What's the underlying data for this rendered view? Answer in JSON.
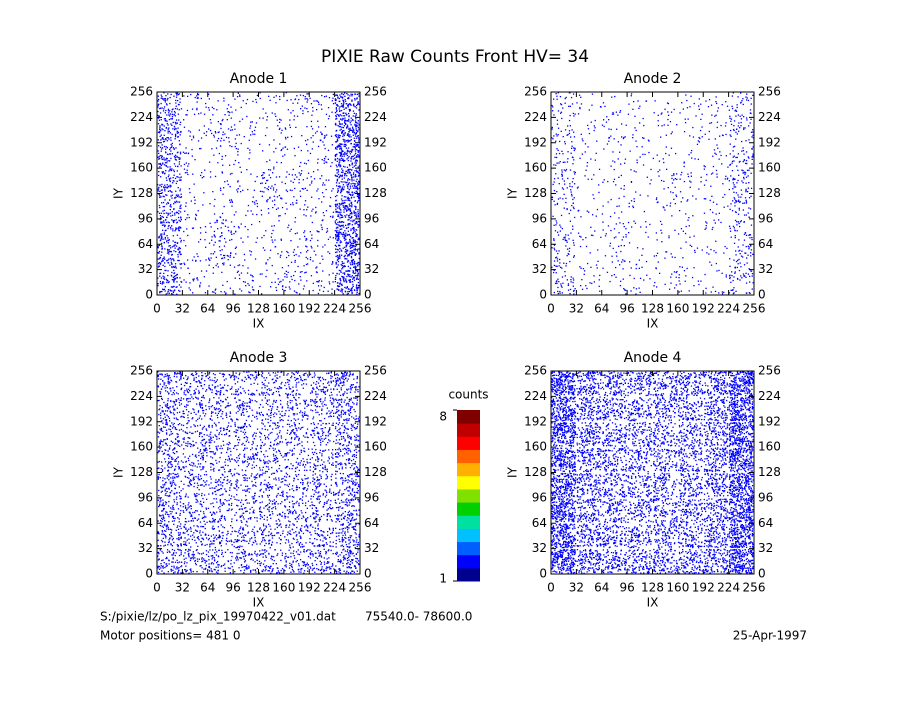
{
  "title": "PIXIE Raw Counts Front HV= 34",
  "chart_data": [
    {
      "type": "dot-density",
      "title": "Anode 1",
      "xlabel": "IX",
      "ylabel": "IY",
      "color": "#0000ff",
      "xlim": [
        0,
        256
      ],
      "ylim": [
        0,
        256
      ],
      "xticks": [
        0,
        32,
        64,
        96,
        128,
        160,
        192,
        224,
        256
      ],
      "yticks": [
        0,
        32,
        64,
        96,
        128,
        160,
        192,
        224,
        256
      ],
      "density": [
        [
          90,
          20,
          15,
          25,
          20,
          30,
          25,
          140
        ],
        [
          100,
          15,
          35,
          15,
          15,
          25,
          20,
          150
        ],
        [
          90,
          15,
          40,
          15,
          15,
          15,
          20,
          160
        ],
        [
          80,
          15,
          15,
          15,
          25,
          20,
          20,
          150
        ],
        [
          80,
          15,
          15,
          15,
          35,
          30,
          20,
          150
        ],
        [
          90,
          15,
          15,
          15,
          15,
          15,
          20,
          160
        ],
        [
          90,
          15,
          35,
          20,
          15,
          15,
          25,
          150
        ],
        [
          80,
          25,
          20,
          15,
          15,
          30,
          25,
          130
        ]
      ]
    },
    {
      "type": "dot-density",
      "title": "Anode 2",
      "xlabel": "IX",
      "ylabel": "IY",
      "color": "#0000ff",
      "xlim": [
        0,
        256
      ],
      "ylim": [
        0,
        256
      ],
      "xticks": [
        0,
        32,
        64,
        96,
        128,
        160,
        192,
        224,
        256
      ],
      "yticks": [
        0,
        32,
        64,
        96,
        128,
        160,
        192,
        224,
        256
      ],
      "density": [
        [
          40,
          15,
          12,
          12,
          15,
          15,
          15,
          45
        ],
        [
          35,
          12,
          20,
          12,
          12,
          12,
          12,
          40
        ],
        [
          30,
          10,
          20,
          12,
          10,
          10,
          12,
          35
        ],
        [
          30,
          10,
          12,
          10,
          15,
          10,
          15,
          40
        ],
        [
          35,
          10,
          12,
          10,
          20,
          15,
          15,
          45
        ],
        [
          30,
          10,
          12,
          10,
          10,
          10,
          15,
          40
        ],
        [
          30,
          12,
          20,
          12,
          12,
          15,
          15,
          40
        ],
        [
          30,
          12,
          12,
          12,
          12,
          15,
          15,
          35
        ]
      ]
    },
    {
      "type": "dot-density",
      "title": "Anode 3",
      "xlabel": "IX",
      "ylabel": "IY",
      "color": "#0000ff",
      "xlim": [
        0,
        256
      ],
      "ylim": [
        0,
        256
      ],
      "xticks": [
        0,
        32,
        64,
        96,
        128,
        160,
        192,
        224,
        256
      ],
      "yticks": [
        0,
        32,
        64,
        96,
        128,
        160,
        192,
        224,
        256
      ],
      "density": [
        [
          90,
          75,
          70,
          70,
          70,
          70,
          75,
          100
        ],
        [
          85,
          70,
          65,
          65,
          65,
          65,
          70,
          95
        ],
        [
          80,
          65,
          65,
          60,
          60,
          65,
          65,
          90
        ],
        [
          80,
          65,
          60,
          60,
          65,
          60,
          65,
          90
        ],
        [
          80,
          65,
          60,
          60,
          60,
          60,
          65,
          85
        ],
        [
          80,
          65,
          60,
          60,
          60,
          60,
          65,
          85
        ],
        [
          80,
          65,
          65,
          60,
          60,
          65,
          65,
          90
        ],
        [
          85,
          70,
          65,
          65,
          65,
          65,
          70,
          95
        ]
      ]
    },
    {
      "type": "dot-density",
      "title": "Anode 4",
      "xlabel": "IX",
      "ylabel": "IY",
      "color": "#0000ff",
      "xlim": [
        0,
        256
      ],
      "ylim": [
        0,
        256
      ],
      "xticks": [
        0,
        32,
        64,
        96,
        128,
        160,
        192,
        224,
        256
      ],
      "yticks": [
        0,
        32,
        64,
        96,
        128,
        160,
        192,
        224,
        256
      ],
      "density": [
        [
          210,
          130,
          110,
          110,
          110,
          110,
          130,
          230
        ],
        [
          200,
          120,
          105,
          100,
          100,
          105,
          120,
          220
        ],
        [
          200,
          115,
          100,
          95,
          95,
          100,
          115,
          220
        ],
        [
          195,
          115,
          100,
          95,
          95,
          100,
          115,
          215
        ],
        [
          195,
          115,
          100,
          95,
          95,
          100,
          115,
          215
        ],
        [
          200,
          115,
          100,
          95,
          95,
          100,
          115,
          220
        ],
        [
          200,
          120,
          105,
          100,
          100,
          105,
          120,
          220
        ],
        [
          210,
          130,
          115,
          110,
          110,
          115,
          130,
          230
        ]
      ]
    },
    {
      "type": "colorbar",
      "label": "counts",
      "lim": [
        1,
        8
      ],
      "ticks": [
        1,
        8
      ],
      "colors": [
        "#00008f",
        "#0000ff",
        "#0060ff",
        "#00c0ff",
        "#00e0a0",
        "#00d000",
        "#80e000",
        "#ffff00",
        "#ffb000",
        "#ff6000",
        "#ff0000",
        "#c00000",
        "#800000"
      ]
    }
  ],
  "footer": {
    "file": "S:/pixie/lz/po_lz_pix_19970422_v01.dat",
    "range": "75540.0- 78600.0",
    "motor": "Motor positions= 481 0",
    "date": "25-Apr-1997"
  }
}
